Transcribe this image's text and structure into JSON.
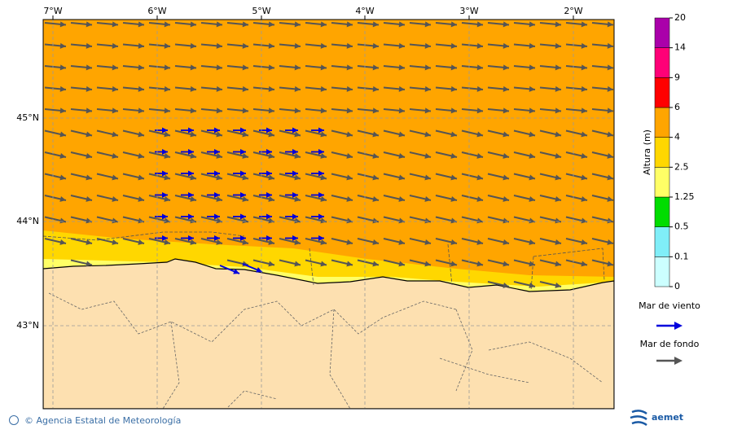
{
  "map": {
    "lon_labels": [
      "7°W",
      "6°W",
      "5°W",
      "4°W",
      "3°W",
      "2°W"
    ],
    "lat_labels": [
      "45°N",
      "44°N",
      "43°N"
    ]
  },
  "colorbar": {
    "label": "Altura (m)",
    "ticks": [
      0,
      0.1,
      0.5,
      1.25,
      2.5,
      4,
      6,
      9,
      14,
      20
    ],
    "colors": [
      "#ccffff",
      "#80eef8",
      "#00dd00",
      "#ffff66",
      "#ffd700",
      "#ffa500",
      "#ff0000",
      "#ff0077",
      "#aa00aa"
    ]
  },
  "legend": [
    {
      "label": "Mar de viento",
      "color": "#0000dd"
    },
    {
      "label": "Mar de fondo",
      "color": "#555555"
    }
  ],
  "footer": {
    "credit": "© Agencia Estatal de Meteorología",
    "logo": "aemet"
  }
}
